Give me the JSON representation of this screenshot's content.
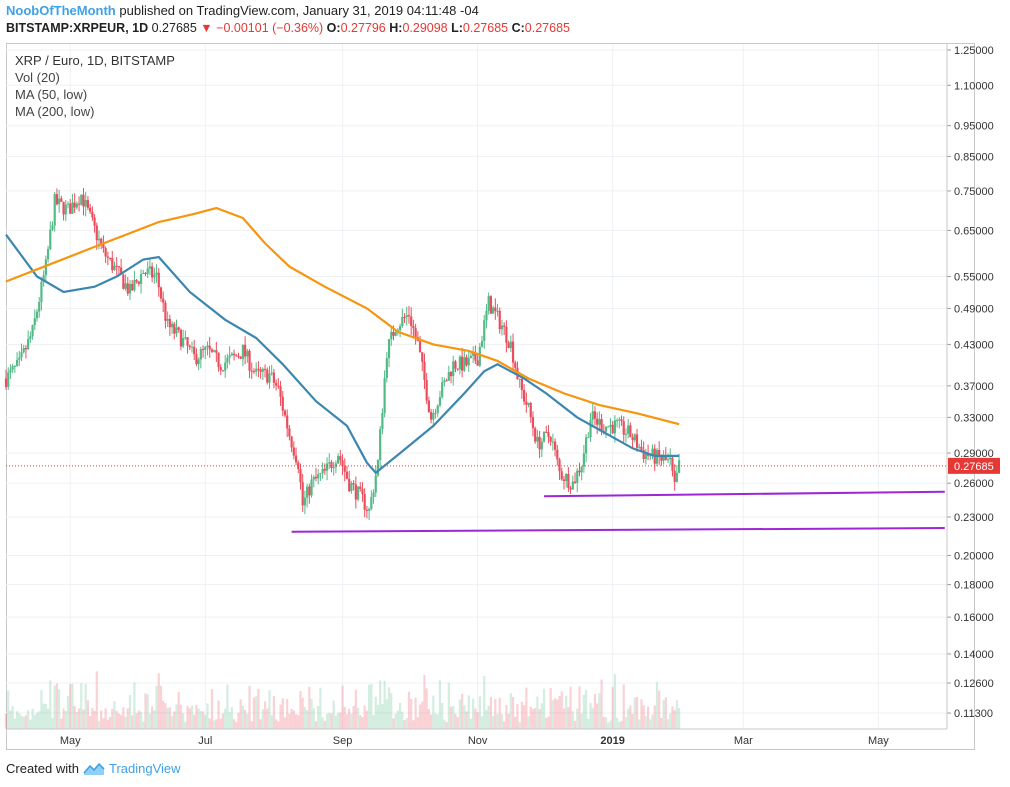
{
  "header": {
    "author": "NoobOfTheMonth",
    "published_text": "published on TradingView.com, January 31, 2019 04:11:48 -04",
    "symbol": "BITSTAMP:XRPEUR, 1D",
    "last": "0.27685",
    "change": "−0.00101 (−0.36%)",
    "o_label": "O:",
    "o_value": "0.27796",
    "h_label": "H:",
    "h_value": "0.29098",
    "l_label": "L:",
    "l_value": "0.27685",
    "c_label": "C:",
    "c_value": "0.27685"
  },
  "legend": {
    "title": "XRP / Euro, 1D, BITSTAMP",
    "vol": "Vol (20)",
    "ma50": "MA (50, low)",
    "ma200": "MA (200, low)"
  },
  "footer": {
    "created_with": "Created with",
    "brand": "TradingView"
  },
  "colors": {
    "up": "#53b987",
    "down": "#eb4d5c",
    "ma50": "#3d86b0",
    "ma200": "#f7950f",
    "support": "#9c27d6",
    "price_label_bg": "#e53935",
    "grid": "#eef1f4"
  },
  "chart_data": {
    "type": "candlestick",
    "title": "XRP / Euro, 1D, BITSTAMP",
    "y_scale": "log",
    "y_ticks": [
      1.25,
      1.1,
      0.95,
      0.85,
      0.75,
      0.65,
      0.55,
      0.49,
      0.43,
      0.37,
      0.33,
      0.29,
      0.26,
      0.23,
      0.2,
      0.18,
      0.16,
      0.14,
      0.126,
      0.113
    ],
    "y_tick_labels": [
      "1.25000",
      "1.10000",
      "0.95000",
      "0.85000",
      "0.75000",
      "0.65000",
      "0.55000",
      "0.49000",
      "0.43000",
      "0.37000",
      "0.33000",
      "0.29000",
      "0.26000",
      "0.23000",
      "0.20000",
      "0.18000",
      "0.16000",
      "0.14000",
      "0.12600",
      "0.11300"
    ],
    "x_ticks": [
      "2018-05-01",
      "2018-07-01",
      "2018-09-01",
      "2018-11-01",
      "2019-01-01",
      "2019-03-01",
      "2019-05-01"
    ],
    "x_tick_labels": [
      "May",
      "Jul",
      "Sep",
      "Nov",
      "2019",
      "Mar",
      "May"
    ],
    "x_range": [
      "2018-04-02",
      "2019-06-01"
    ],
    "last_price": 0.27685,
    "last_price_label": "0.27685",
    "price_path": [
      [
        "2018-04-02",
        0.38
      ],
      [
        "2018-04-08",
        0.4
      ],
      [
        "2018-04-14",
        0.45
      ],
      [
        "2018-04-20",
        0.57
      ],
      [
        "2018-04-24",
        0.72
      ],
      [
        "2018-04-30",
        0.7
      ],
      [
        "2018-05-06",
        0.74
      ],
      [
        "2018-05-10",
        0.68
      ],
      [
        "2018-05-16",
        0.6
      ],
      [
        "2018-05-22",
        0.56
      ],
      [
        "2018-05-28",
        0.52
      ],
      [
        "2018-06-03",
        0.56
      ],
      [
        "2018-06-09",
        0.55
      ],
      [
        "2018-06-14",
        0.46
      ],
      [
        "2018-06-20",
        0.44
      ],
      [
        "2018-06-26",
        0.41
      ],
      [
        "2018-07-02",
        0.42
      ],
      [
        "2018-07-08",
        0.4
      ],
      [
        "2018-07-14",
        0.41
      ],
      [
        "2018-07-18",
        0.42
      ],
      [
        "2018-07-24",
        0.385
      ],
      [
        "2018-07-30",
        0.385
      ],
      [
        "2018-08-03",
        0.365
      ],
      [
        "2018-08-08",
        0.31
      ],
      [
        "2018-08-12",
        0.28
      ],
      [
        "2018-08-14",
        0.24
      ],
      [
        "2018-08-18",
        0.26
      ],
      [
        "2018-08-24",
        0.27
      ],
      [
        "2018-08-30",
        0.29
      ],
      [
        "2018-09-04",
        0.26
      ],
      [
        "2018-09-10",
        0.245
      ],
      [
        "2018-09-13",
        0.235
      ],
      [
        "2018-09-17",
        0.28
      ],
      [
        "2018-09-21",
        0.42
      ],
      [
        "2018-09-25",
        0.46
      ],
      [
        "2018-10-01",
        0.48
      ],
      [
        "2018-10-05",
        0.43
      ],
      [
        "2018-10-11",
        0.33
      ],
      [
        "2018-10-15",
        0.36
      ],
      [
        "2018-10-21",
        0.4
      ],
      [
        "2018-10-27",
        0.4
      ],
      [
        "2018-11-01",
        0.41
      ],
      [
        "2018-11-06",
        0.5
      ],
      [
        "2018-11-12",
        0.46
      ],
      [
        "2018-11-16",
        0.43
      ],
      [
        "2018-11-20",
        0.37
      ],
      [
        "2018-11-24",
        0.34
      ],
      [
        "2018-11-28",
        0.3
      ],
      [
        "2018-12-04",
        0.31
      ],
      [
        "2018-12-08",
        0.27
      ],
      [
        "2018-12-14",
        0.26
      ],
      [
        "2018-12-18",
        0.28
      ],
      [
        "2018-12-22",
        0.33
      ],
      [
        "2018-12-28",
        0.32
      ],
      [
        "2019-01-03",
        0.32
      ],
      [
        "2019-01-09",
        0.31
      ],
      [
        "2019-01-15",
        0.29
      ],
      [
        "2019-01-21",
        0.285
      ],
      [
        "2019-01-27",
        0.28
      ],
      [
        "2019-01-29",
        0.255
      ],
      [
        "2019-01-31",
        0.277
      ]
    ],
    "series": [
      {
        "name": "MA (50, low)",
        "points": [
          [
            "2018-04-02",
            0.64
          ],
          [
            "2018-04-16",
            0.55
          ],
          [
            "2018-04-28",
            0.52
          ],
          [
            "2018-05-12",
            0.53
          ],
          [
            "2018-05-22",
            0.55
          ],
          [
            "2018-06-03",
            0.585
          ],
          [
            "2018-06-10",
            0.59
          ],
          [
            "2018-06-24",
            0.52
          ],
          [
            "2018-07-10",
            0.47
          ],
          [
            "2018-07-24",
            0.44
          ],
          [
            "2018-08-05",
            0.4
          ],
          [
            "2018-08-20",
            0.35
          ],
          [
            "2018-09-03",
            0.32
          ],
          [
            "2018-09-12",
            0.28
          ],
          [
            "2018-09-16",
            0.27
          ],
          [
            "2018-09-27",
            0.29
          ],
          [
            "2018-10-12",
            0.32
          ],
          [
            "2018-10-26",
            0.36
          ],
          [
            "2018-11-04",
            0.39
          ],
          [
            "2018-11-10",
            0.4
          ],
          [
            "2018-11-22",
            0.38
          ],
          [
            "2018-12-02",
            0.36
          ],
          [
            "2018-12-16",
            0.33
          ],
          [
            "2018-12-30",
            0.31
          ],
          [
            "2019-01-10",
            0.295
          ],
          [
            "2019-01-20",
            0.287
          ],
          [
            "2019-01-31",
            0.287
          ]
        ]
      },
      {
        "name": "MA (200, low)",
        "points": [
          [
            "2018-04-02",
            0.54
          ],
          [
            "2018-04-22",
            0.575
          ],
          [
            "2018-05-16",
            0.62
          ],
          [
            "2018-06-10",
            0.67
          ],
          [
            "2018-06-26",
            0.69
          ],
          [
            "2018-07-06",
            0.705
          ],
          [
            "2018-07-18",
            0.68
          ],
          [
            "2018-07-28",
            0.62
          ],
          [
            "2018-08-08",
            0.57
          ],
          [
            "2018-08-24",
            0.53
          ],
          [
            "2018-09-12",
            0.49
          ],
          [
            "2018-09-26",
            0.45
          ],
          [
            "2018-10-12",
            0.43
          ],
          [
            "2018-10-28",
            0.42
          ],
          [
            "2018-11-10",
            0.405
          ],
          [
            "2018-11-24",
            0.38
          ],
          [
            "2018-12-10",
            0.36
          ],
          [
            "2018-12-26",
            0.345
          ],
          [
            "2019-01-12",
            0.335
          ],
          [
            "2019-01-31",
            0.322
          ]
        ]
      }
    ],
    "volume": {
      "name": "Vol (20)",
      "range_top": 0.199,
      "recent_peaks": [
        0.199,
        0.174,
        0.15,
        0.146
      ]
    },
    "support_lines": [
      {
        "from": [
          "2018-12-01",
          0.248
        ],
        "to": [
          "2019-05-31",
          0.252
        ]
      },
      {
        "from": [
          "2018-08-09",
          0.218
        ],
        "to": [
          "2019-05-31",
          0.221
        ]
      }
    ]
  }
}
